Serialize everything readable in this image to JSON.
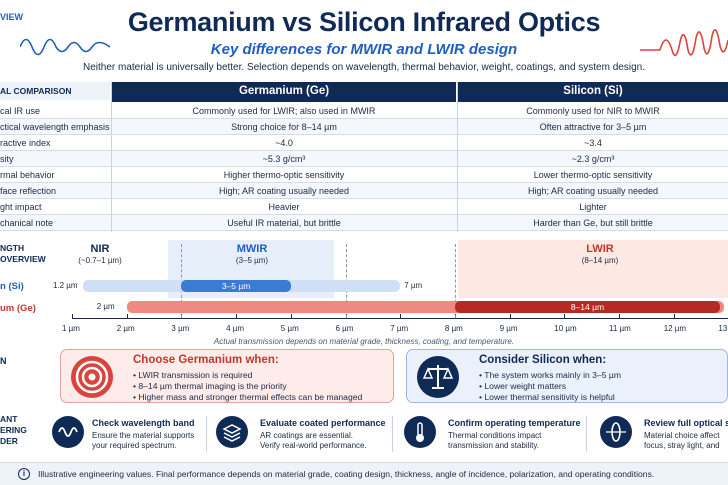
{
  "header": {
    "corner_tag": "VIEW",
    "title": "Germanium vs Silicon Infrared Optics",
    "subtitle": "Key differences for MWIR and LWIR design",
    "tagline": "Neither material is universally better. Selection depends on wavelength, thermal behavior, weight, coatings, and system design."
  },
  "comparison": {
    "section_label": "AL COMPARISON",
    "columns": [
      "Germanium (Ge)",
      "Silicon (Si)"
    ],
    "rows": [
      {
        "label": "cal IR use",
        "ge": "Commonly used for LWIR; also used in MWIR",
        "si": "Commonly used for NIR to MWIR"
      },
      {
        "label": "ctical wavelength emphasis",
        "ge": "Strong choice for 8–14 µm",
        "si": "Often attractive for 3–5 µm"
      },
      {
        "label": "ractive index",
        "ge": "~4.0",
        "si": "~3.4"
      },
      {
        "label": "sity",
        "ge": "~5.3 g/cm³",
        "si": "~2.3 g/cm³"
      },
      {
        "label": "rmal behavior",
        "ge": "Higher thermo-optic sensitivity",
        "si": "Lower thermo-optic sensitivity"
      },
      {
        "label": "face reflection",
        "ge": "High; AR coating usually needed",
        "si": "High; AR coating usually needed"
      },
      {
        "label": "ght impact",
        "ge": "Heavier",
        "si": "Lighter"
      },
      {
        "label": "chanical note",
        "ge": "Useful IR material, but brittle",
        "si": "Harder than Ge, but still brittle"
      }
    ]
  },
  "wavelength": {
    "section_label_1": "NGTH",
    "section_label_2": "OVERVIEW",
    "bands": [
      {
        "name": "NIR",
        "range": "(~0.7–1 µm)"
      },
      {
        "name": "MWIR",
        "range": "(3–5 µm)"
      },
      {
        "name": "LWIR",
        "range": "(8–14 µm)"
      }
    ],
    "materials": [
      {
        "label": "n (Si)",
        "start_label": "1.2 µm",
        "end_label": "7 µm",
        "start": 1.2,
        "end": 7,
        "highlight": "3–5 µm",
        "highlight_range": [
          3,
          5
        ]
      },
      {
        "label": "um (Ge)",
        "start_label": "2 µm",
        "end_label": "",
        "start": 2,
        "end": 14,
        "highlight": "8–14 µm",
        "highlight_range": [
          8,
          14
        ]
      }
    ],
    "ticks": [
      "1 µm",
      "2 µm",
      "3 µm",
      "4 µm",
      "5 µm",
      "6 µm",
      "7 µm",
      "8 µm",
      "9 µm",
      "10 µm",
      "11 µm",
      "12 µm",
      "13 µm"
    ],
    "axis_note": "Actual transmission depends on material grade, thickness, coating, and temperature.",
    "colors": {
      "si": "#3a7bd5",
      "ge": "#d9443c",
      "lwir_bg": "#fde9e2",
      "mwir_bg": "#e6eef9"
    }
  },
  "choose": {
    "section_label": "N",
    "germanium": {
      "title": "Choose Germanium when:",
      "items": [
        "LWIR transmission is required",
        "8–14 µm thermal imaging is the priority",
        "Higher mass and stronger thermal effects can be managed"
      ]
    },
    "silicon": {
      "title": "Consider Silicon when:",
      "items": [
        "The system works mainly in 3–5 µm",
        "Lower weight matters",
        "Lower thermal sensitivity is helpful"
      ]
    }
  },
  "steps": {
    "section_label_1": "ANT",
    "section_label_2": "ERING",
    "section_label_3": "DER",
    "items": [
      {
        "icon": "wave-icon",
        "title": "Check wavelength band",
        "desc_1": "Ensure the material supports",
        "desc_2": "your required spectrum."
      },
      {
        "icon": "layers-icon",
        "title": "Evaluate coated performance",
        "desc_1": "AR coatings are essential.",
        "desc_2": "Verify real-world performance."
      },
      {
        "icon": "thermometer-icon",
        "title": "Confirm operating temperature",
        "desc_1": "Thermal conditions impact",
        "desc_2": "transmission and stability."
      },
      {
        "icon": "lens-icon",
        "title": "Review full optical sy",
        "desc_1": "Material choice affect",
        "desc_2": "focus, stray light, and"
      }
    ]
  },
  "footer": {
    "text": "Illustrative engineering values. Final performance depends on material grade, coating design, thickness, angle of incidence, polarization, and operating conditions."
  }
}
